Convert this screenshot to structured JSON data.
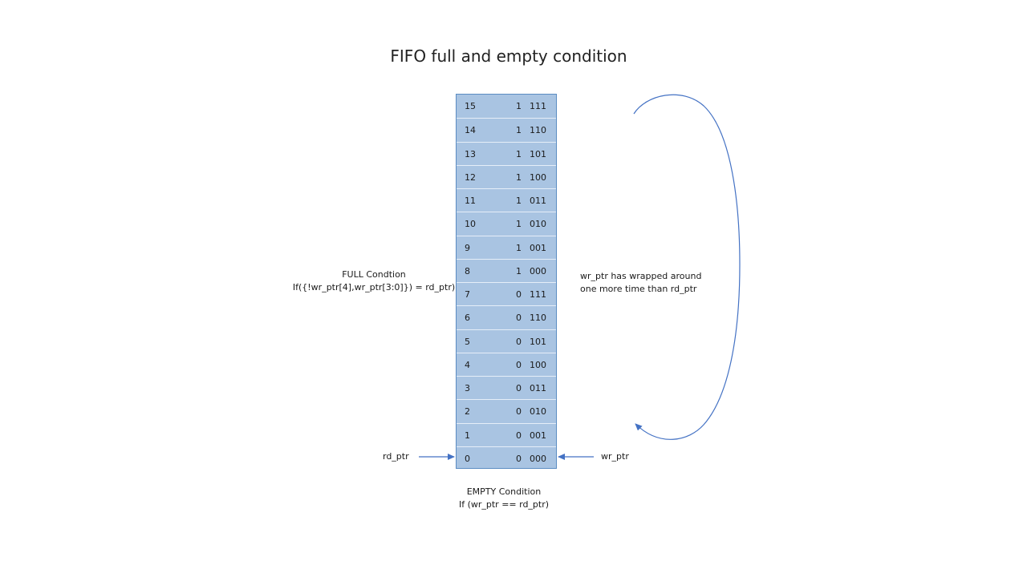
{
  "title": "FIFO full and empty condition",
  "fifo_rows": [
    {
      "index": "15",
      "msb": "1",
      "bits": "111"
    },
    {
      "index": "14",
      "msb": "1",
      "bits": "110"
    },
    {
      "index": "13",
      "msb": "1",
      "bits": "101"
    },
    {
      "index": "12",
      "msb": "1",
      "bits": "100"
    },
    {
      "index": "11",
      "msb": "1",
      "bits": "011"
    },
    {
      "index": "10",
      "msb": "1",
      "bits": "010"
    },
    {
      "index": "9",
      "msb": "1",
      "bits": "001"
    },
    {
      "index": "8",
      "msb": "1",
      "bits": "000"
    },
    {
      "index": "7",
      "msb": "0",
      "bits": "111"
    },
    {
      "index": "6",
      "msb": "0",
      "bits": "110"
    },
    {
      "index": "5",
      "msb": "0",
      "bits": "101"
    },
    {
      "index": "4",
      "msb": "0",
      "bits": "100"
    },
    {
      "index": "3",
      "msb": "0",
      "bits": "011"
    },
    {
      "index": "2",
      "msb": "0",
      "bits": "010"
    },
    {
      "index": "1",
      "msb": "0",
      "bits": "001"
    },
    {
      "index": "0",
      "msb": "0",
      "bits": "000"
    }
  ],
  "full_condition": {
    "heading": "FULL Condtion",
    "expression": "If({!wr_ptr[4],wr_ptr[3:0]})  = rd_ptr)"
  },
  "empty_condition": {
    "heading": "EMPTY Condition",
    "expression": "If (wr_ptr == rd_ptr)"
  },
  "wrap_note": {
    "line1": "wr_ptr has wrapped around",
    "line2": "one more time than rd_ptr"
  },
  "rd_ptr_label": "rd_ptr",
  "wr_ptr_label": "wr_ptr",
  "colors": {
    "cell_fill": "#a9c4e2",
    "cell_border": "#5b8cc2",
    "arrow": "#4472c4"
  }
}
